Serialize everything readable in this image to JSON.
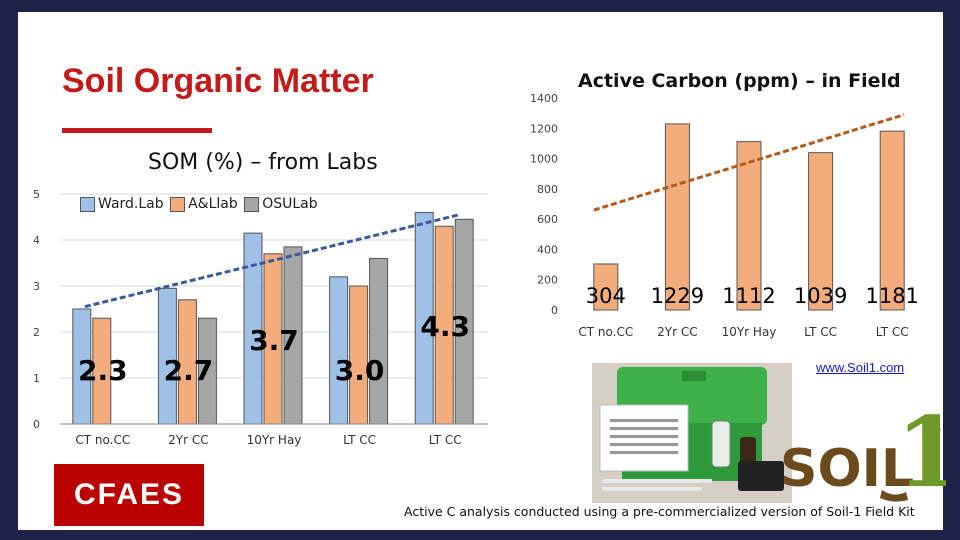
{
  "slide_title": "Soil Organic Matter",
  "colors": {
    "blue": "#9fc1e7",
    "orange": "#f3ad7d",
    "gray": "#a6a6a6",
    "blue_trend": "#3a5a9c",
    "orange_trend": "#b35a1c",
    "title_red": "#c41a1a",
    "brand_red": "#bb0000"
  },
  "chart_data": [
    {
      "type": "bar",
      "title": "SOM (%) – from Labs",
      "categories": [
        "CT no.CC",
        "2Yr CC",
        "10Yr Hay",
        "LT CC",
        "LT CC"
      ],
      "series": [
        {
          "name": "Ward.Lab",
          "color": "#9fc1e7",
          "values": [
            2.5,
            2.95,
            4.15,
            3.2,
            4.6
          ]
        },
        {
          "name": "A&Llab",
          "color": "#f3ad7d",
          "values": [
            2.3,
            2.7,
            3.7,
            3.0,
            4.3
          ]
        },
        {
          "name": "OSULab",
          "color": "#a6a6a6",
          "values": [
            null,
            2.3,
            3.85,
            3.6,
            4.45
          ]
        }
      ],
      "data_labels": [
        "2.3",
        "2.7",
        "3.7",
        "3.0",
        "4.3"
      ],
      "yticks": [
        "0",
        "1",
        "2",
        "3",
        "4",
        "5"
      ],
      "ylim": [
        0,
        5
      ],
      "trendline": {
        "from": 2.55,
        "to": 4.55
      },
      "legend": "top"
    },
    {
      "type": "bar",
      "title": "Active Carbon (ppm) – in Field",
      "categories": [
        "CT no.CC",
        "2Yr CC",
        "10Yr Hay",
        "LT CC",
        "LT CC"
      ],
      "values": [
        304,
        1229,
        1112,
        1039,
        1181
      ],
      "data_labels": [
        "304",
        "1229",
        "1112",
        "1039",
        "1181"
      ],
      "yticks": [
        "0",
        "200",
        "400",
        "600",
        "800",
        "1000",
        "1200",
        "1400"
      ],
      "ylim": [
        0,
        1400
      ],
      "trendline": {
        "from": 660,
        "to": 1290
      }
    }
  ],
  "url": "www.Soil1.com",
  "cfaes_logo": "CFAES",
  "soil1_logo_text": "SOIL",
  "soil1_logo_number": "1",
  "caption": "Active C analysis conducted using a pre-commercialized version of Soil-1 Field Kit"
}
